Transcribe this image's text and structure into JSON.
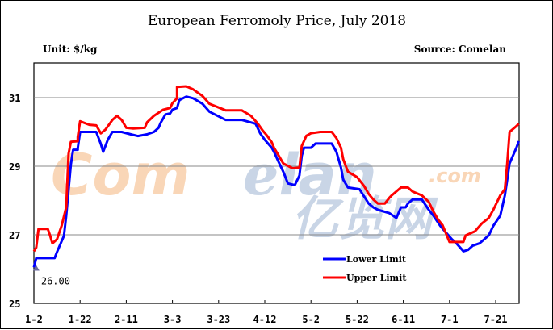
{
  "chart_data": {
    "type": "line",
    "title": "European Ferromoly Price, July 2018",
    "unit_label": "Unit: $/kg",
    "source_label": "Source: Comelan",
    "xlabel": "",
    "ylabel": "$/kg",
    "ylim": [
      25,
      31.9
    ],
    "yticks": [
      25,
      27,
      29,
      31
    ],
    "ytick_labels": [
      "25",
      "27",
      "29",
      "31"
    ],
    "xticks": [
      "1-2",
      "1-22",
      "2-11",
      "3-3",
      "3-23",
      "4-12",
      "5-2",
      "5-22",
      "6-11",
      "7-1",
      "7-21"
    ],
    "x_day_range": [
      0,
      210
    ],
    "grid": "horizontal",
    "legend_position": "bottom-right",
    "watermark": {
      "text": "Comelan",
      "suffix": ".com",
      "chinese": "亿览网"
    },
    "annotation": {
      "text": "26.00",
      "day": 1,
      "value": 26.0
    },
    "series": [
      {
        "name": "Lower Limit",
        "color": "#0000ff",
        "points": [
          [
            0,
            26.05
          ],
          [
            1,
            26.32
          ],
          [
            2,
            26.32
          ],
          [
            9,
            26.32
          ],
          [
            10,
            26.5
          ],
          [
            13,
            26.97
          ],
          [
            14,
            27.55
          ],
          [
            16,
            29.06
          ],
          [
            17,
            29.48
          ],
          [
            19,
            29.48
          ],
          [
            19,
            29.53
          ],
          [
            20,
            30.0
          ],
          [
            27,
            30.0
          ],
          [
            29,
            29.65
          ],
          [
            30,
            29.42
          ],
          [
            32,
            29.77
          ],
          [
            34,
            30.0
          ],
          [
            38,
            30.0
          ],
          [
            42,
            29.93
          ],
          [
            45,
            29.88
          ],
          [
            49,
            29.93
          ],
          [
            52,
            30.0
          ],
          [
            54,
            30.12
          ],
          [
            55,
            30.28
          ],
          [
            57,
            30.51
          ],
          [
            59,
            30.54
          ],
          [
            60,
            30.65
          ],
          [
            62,
            30.7
          ],
          [
            63,
            30.93
          ],
          [
            66,
            31.03
          ],
          [
            69,
            30.98
          ],
          [
            73,
            30.82
          ],
          [
            76,
            30.59
          ],
          [
            83,
            30.35
          ],
          [
            90,
            30.35
          ],
          [
            96,
            30.24
          ],
          [
            98,
            29.96
          ],
          [
            100,
            29.77
          ],
          [
            103,
            29.54
          ],
          [
            104,
            29.42
          ],
          [
            106,
            29.12
          ],
          [
            108,
            28.84
          ],
          [
            110,
            28.5
          ],
          [
            113,
            28.45
          ],
          [
            115,
            28.73
          ],
          [
            116,
            29.31
          ],
          [
            117,
            29.54
          ],
          [
            120,
            29.54
          ],
          [
            122,
            29.66
          ],
          [
            129,
            29.66
          ],
          [
            131,
            29.42
          ],
          [
            133,
            28.96
          ],
          [
            134,
            28.61
          ],
          [
            136,
            28.38
          ],
          [
            141,
            28.33
          ],
          [
            145,
            27.91
          ],
          [
            147,
            27.8
          ],
          [
            149,
            27.73
          ],
          [
            154,
            27.63
          ],
          [
            157,
            27.49
          ],
          [
            159,
            27.8
          ],
          [
            161,
            27.8
          ],
          [
            162,
            27.91
          ],
          [
            164,
            28.03
          ],
          [
            168,
            28.03
          ],
          [
            171,
            27.73
          ],
          [
            173,
            27.56
          ],
          [
            176,
            27.26
          ],
          [
            178,
            27.1
          ],
          [
            181,
            26.87
          ],
          [
            183,
            26.75
          ],
          [
            186,
            26.52
          ],
          [
            188,
            26.56
          ],
          [
            190,
            26.68
          ],
          [
            193,
            26.75
          ],
          [
            197,
            26.98
          ],
          [
            199,
            27.26
          ],
          [
            202,
            27.56
          ],
          [
            204,
            28.15
          ],
          [
            205,
            28.61
          ],
          [
            206,
            29.08
          ],
          [
            209,
            29.54
          ],
          [
            210,
            29.73
          ]
        ]
      },
      {
        "name": "Upper Limit",
        "color": "#ff0000",
        "points": [
          [
            0,
            26.52
          ],
          [
            1,
            26.63
          ],
          [
            2,
            27.17
          ],
          [
            6,
            27.17
          ],
          [
            7,
            26.98
          ],
          [
            8,
            26.75
          ],
          [
            10,
            26.87
          ],
          [
            12,
            27.26
          ],
          [
            14,
            27.8
          ],
          [
            15,
            29.36
          ],
          [
            16,
            29.71
          ],
          [
            19,
            29.73
          ],
          [
            19,
            29.85
          ],
          [
            20,
            30.31
          ],
          [
            24,
            30.21
          ],
          [
            27,
            30.19
          ],
          [
            29,
            29.96
          ],
          [
            31,
            30.07
          ],
          [
            34,
            30.35
          ],
          [
            36,
            30.47
          ],
          [
            38,
            30.35
          ],
          [
            40,
            30.12
          ],
          [
            43,
            30.1
          ],
          [
            48,
            30.12
          ],
          [
            49,
            30.28
          ],
          [
            52,
            30.47
          ],
          [
            56,
            30.65
          ],
          [
            59,
            30.7
          ],
          [
            60,
            30.84
          ],
          [
            62,
            30.98
          ],
          [
            62,
            31.31
          ],
          [
            66,
            31.33
          ],
          [
            69,
            31.24
          ],
          [
            73,
            31.05
          ],
          [
            76,
            30.82
          ],
          [
            83,
            30.63
          ],
          [
            90,
            30.63
          ],
          [
            94,
            30.47
          ],
          [
            97,
            30.24
          ],
          [
            99,
            30.05
          ],
          [
            101,
            29.89
          ],
          [
            103,
            29.7
          ],
          [
            104,
            29.54
          ],
          [
            106,
            29.31
          ],
          [
            108,
            29.08
          ],
          [
            112,
            28.94
          ],
          [
            115,
            28.96
          ],
          [
            116,
            29.59
          ],
          [
            118,
            29.89
          ],
          [
            120,
            29.96
          ],
          [
            124,
            30.0
          ],
          [
            129,
            30.0
          ],
          [
            131,
            29.82
          ],
          [
            133,
            29.54
          ],
          [
            134,
            29.2
          ],
          [
            136,
            28.84
          ],
          [
            140,
            28.68
          ],
          [
            143,
            28.42
          ],
          [
            145,
            28.19
          ],
          [
            147,
            28.03
          ],
          [
            149,
            27.91
          ],
          [
            152,
            27.91
          ],
          [
            154,
            28.08
          ],
          [
            155,
            28.15
          ],
          [
            159,
            28.38
          ],
          [
            162,
            28.38
          ],
          [
            164,
            28.26
          ],
          [
            168,
            28.15
          ],
          [
            171,
            27.96
          ],
          [
            173,
            27.68
          ],
          [
            175,
            27.45
          ],
          [
            177,
            27.28
          ],
          [
            180,
            26.79
          ],
          [
            182,
            26.79
          ],
          [
            186,
            26.79
          ],
          [
            187,
            26.98
          ],
          [
            191,
            27.1
          ],
          [
            194,
            27.33
          ],
          [
            197,
            27.49
          ],
          [
            199,
            27.73
          ],
          [
            202,
            28.15
          ],
          [
            204,
            28.33
          ],
          [
            205,
            29.08
          ],
          [
            206,
            30.0
          ],
          [
            209,
            30.17
          ],
          [
            210,
            30.24
          ]
        ]
      }
    ]
  }
}
